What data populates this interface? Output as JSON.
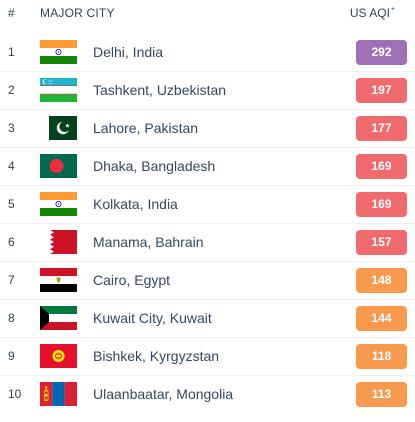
{
  "header": {
    "rank_label": "#",
    "city_label": "MAJOR CITY",
    "aqi_label": "US AQI",
    "aqi_sup": "+"
  },
  "colors": {
    "very_unhealthy": "#a070b6",
    "unhealthy": "#f16a6d",
    "unhealthy_sensitive": "#f79a4e"
  },
  "rows": [
    {
      "rank": "1",
      "city": "Delhi, India",
      "aqi": "292",
      "level": "very_unhealthy",
      "flag": "india-flag-icon"
    },
    {
      "rank": "2",
      "city": "Tashkent, Uzbekistan",
      "aqi": "197",
      "level": "unhealthy",
      "flag": "uzbekistan-flag-icon"
    },
    {
      "rank": "3",
      "city": "Lahore, Pakistan",
      "aqi": "177",
      "level": "unhealthy",
      "flag": "pakistan-flag-icon"
    },
    {
      "rank": "4",
      "city": "Dhaka, Bangladesh",
      "aqi": "169",
      "level": "unhealthy",
      "flag": "bangladesh-flag-icon"
    },
    {
      "rank": "5",
      "city": "Kolkata, India",
      "aqi": "169",
      "level": "unhealthy",
      "flag": "india-flag-icon"
    },
    {
      "rank": "6",
      "city": "Manama, Bahrain",
      "aqi": "157",
      "level": "unhealthy",
      "flag": "bahrain-flag-icon"
    },
    {
      "rank": "7",
      "city": "Cairo, Egypt",
      "aqi": "148",
      "level": "unhealthy_sensitive",
      "flag": "egypt-flag-icon"
    },
    {
      "rank": "8",
      "city": "Kuwait City, Kuwait",
      "aqi": "144",
      "level": "unhealthy_sensitive",
      "flag": "kuwait-flag-icon"
    },
    {
      "rank": "9",
      "city": "Bishkek, Kyrgyzstan",
      "aqi": "118",
      "level": "unhealthy_sensitive",
      "flag": "kyrgyzstan-flag-icon"
    },
    {
      "rank": "10",
      "city": "Ulaanbaatar, Mongolia",
      "aqi": "113",
      "level": "unhealthy_sensitive",
      "flag": "mongolia-flag-icon"
    }
  ]
}
